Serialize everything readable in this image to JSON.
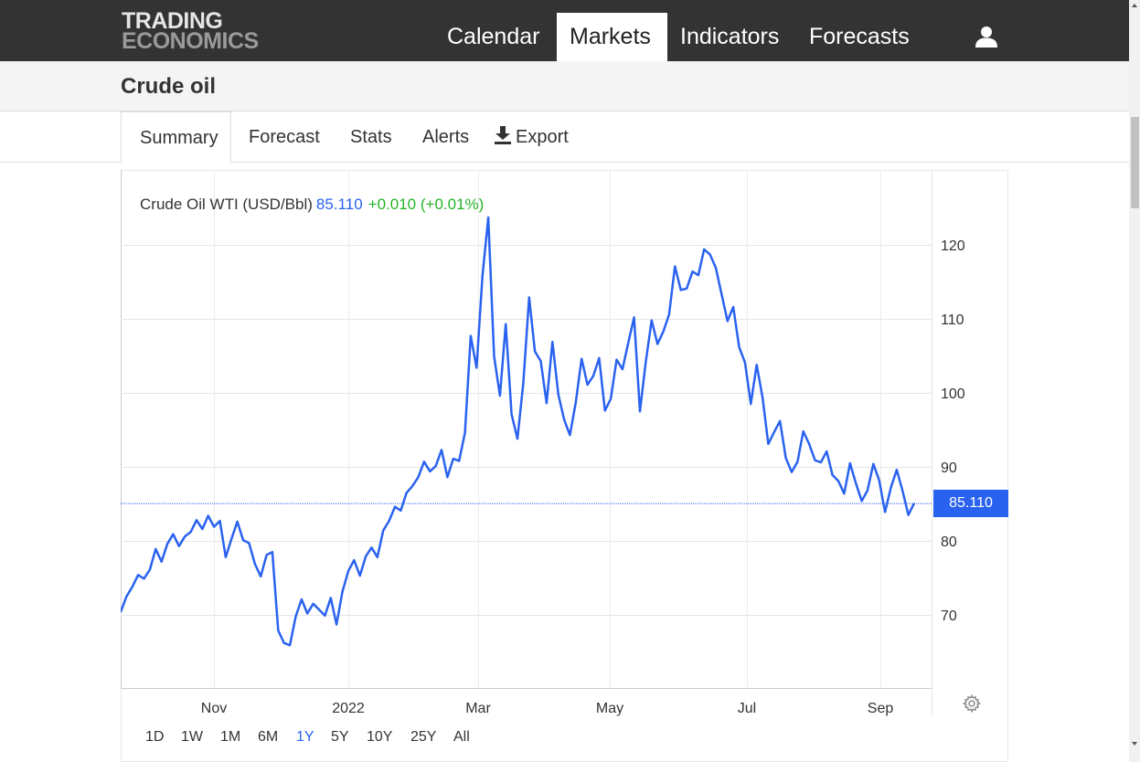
{
  "header": {
    "logo_line1": "TRADING",
    "logo_line2": "ECONOMICS",
    "nav": [
      "Calendar",
      "Markets",
      "Indicators",
      "Forecasts"
    ],
    "active_nav": "Markets",
    "user_icon": "user-icon"
  },
  "page": {
    "title": "Crude oil"
  },
  "tabs": [
    "Summary",
    "Forecast",
    "Stats",
    "Alerts",
    "Export"
  ],
  "active_tab": "Summary",
  "export_icon": "download-icon",
  "quote": {
    "name": "Crude Oil WTI (USD/Bbl)",
    "price": "85.110",
    "change": "+0.010 (+0.01%)",
    "badge": "85.110"
  },
  "colors": {
    "line": "#2a62f0",
    "positive": "#26b326",
    "topbar": "#333333"
  },
  "ranges": [
    "1D",
    "1W",
    "1M",
    "6M",
    "1Y",
    "5Y",
    "10Y",
    "25Y",
    "All"
  ],
  "active_range": "1Y",
  "settings_icon": "gear-icon",
  "chart_data": {
    "type": "line",
    "title": "Crude Oil WTI (USD/Bbl)",
    "xlabel": "",
    "ylabel": "",
    "ylim": [
      60,
      130
    ],
    "y_ticks": [
      70,
      80,
      90,
      100,
      110,
      120
    ],
    "x_ticks": [
      "Nov",
      "2022",
      "Mar",
      "May",
      "Jul",
      "Sep"
    ],
    "grid": true,
    "last_value": 85.11,
    "series": [
      {
        "values": [
          70.4,
          72.5,
          73.8,
          75.4,
          74.9,
          76.1,
          78.9,
          77.2,
          79.6,
          80.9,
          79.3,
          80.6,
          81.2,
          82.8,
          81.6,
          83.4,
          81.9,
          82.7,
          77.8,
          80.3,
          82.6,
          80.1,
          79.7,
          76.9,
          75.2,
          78.1,
          78.5,
          67.9,
          66.2,
          65.9,
          69.8,
          72.1,
          70.2,
          71.5,
          70.7,
          69.9,
          72.3,
          68.7,
          73.1,
          75.9,
          77.4,
          75.3,
          77.9,
          79.1,
          77.8,
          81.4,
          82.7,
          84.6,
          84.1,
          86.5,
          87.4,
          88.6,
          90.7,
          89.4,
          90.1,
          92.3,
          88.6,
          91.1,
          90.8,
          94.6,
          107.7,
          103.4,
          115.7,
          123.7,
          104.9,
          99.6,
          109.3,
          97.1,
          93.8,
          101.3,
          112.9,
          105.6,
          104.3,
          98.6,
          106.9,
          99.8,
          96.4,
          94.3,
          98.7,
          104.6,
          101.1,
          102.3,
          104.7,
          97.6,
          99.2,
          104.5,
          103.2,
          106.8,
          110.2,
          97.5,
          104.2,
          109.8,
          106.6,
          108.3,
          110.6,
          117.1,
          113.9,
          114.1,
          116.4,
          115.9,
          119.4,
          118.7,
          116.9,
          113.3,
          109.7,
          111.6,
          106.2,
          104.1,
          98.5,
          103.8,
          99.4,
          93.1,
          94.7,
          96.2,
          91.2,
          89.3,
          90.7,
          94.8,
          93.1,
          90.9,
          90.6,
          92.1,
          88.9,
          88.1,
          86.4,
          90.5,
          87.8,
          85.4,
          86.8,
          90.4,
          88.2,
          83.9,
          87.2,
          89.6,
          86.8,
          83.5,
          85.1
        ]
      }
    ]
  }
}
